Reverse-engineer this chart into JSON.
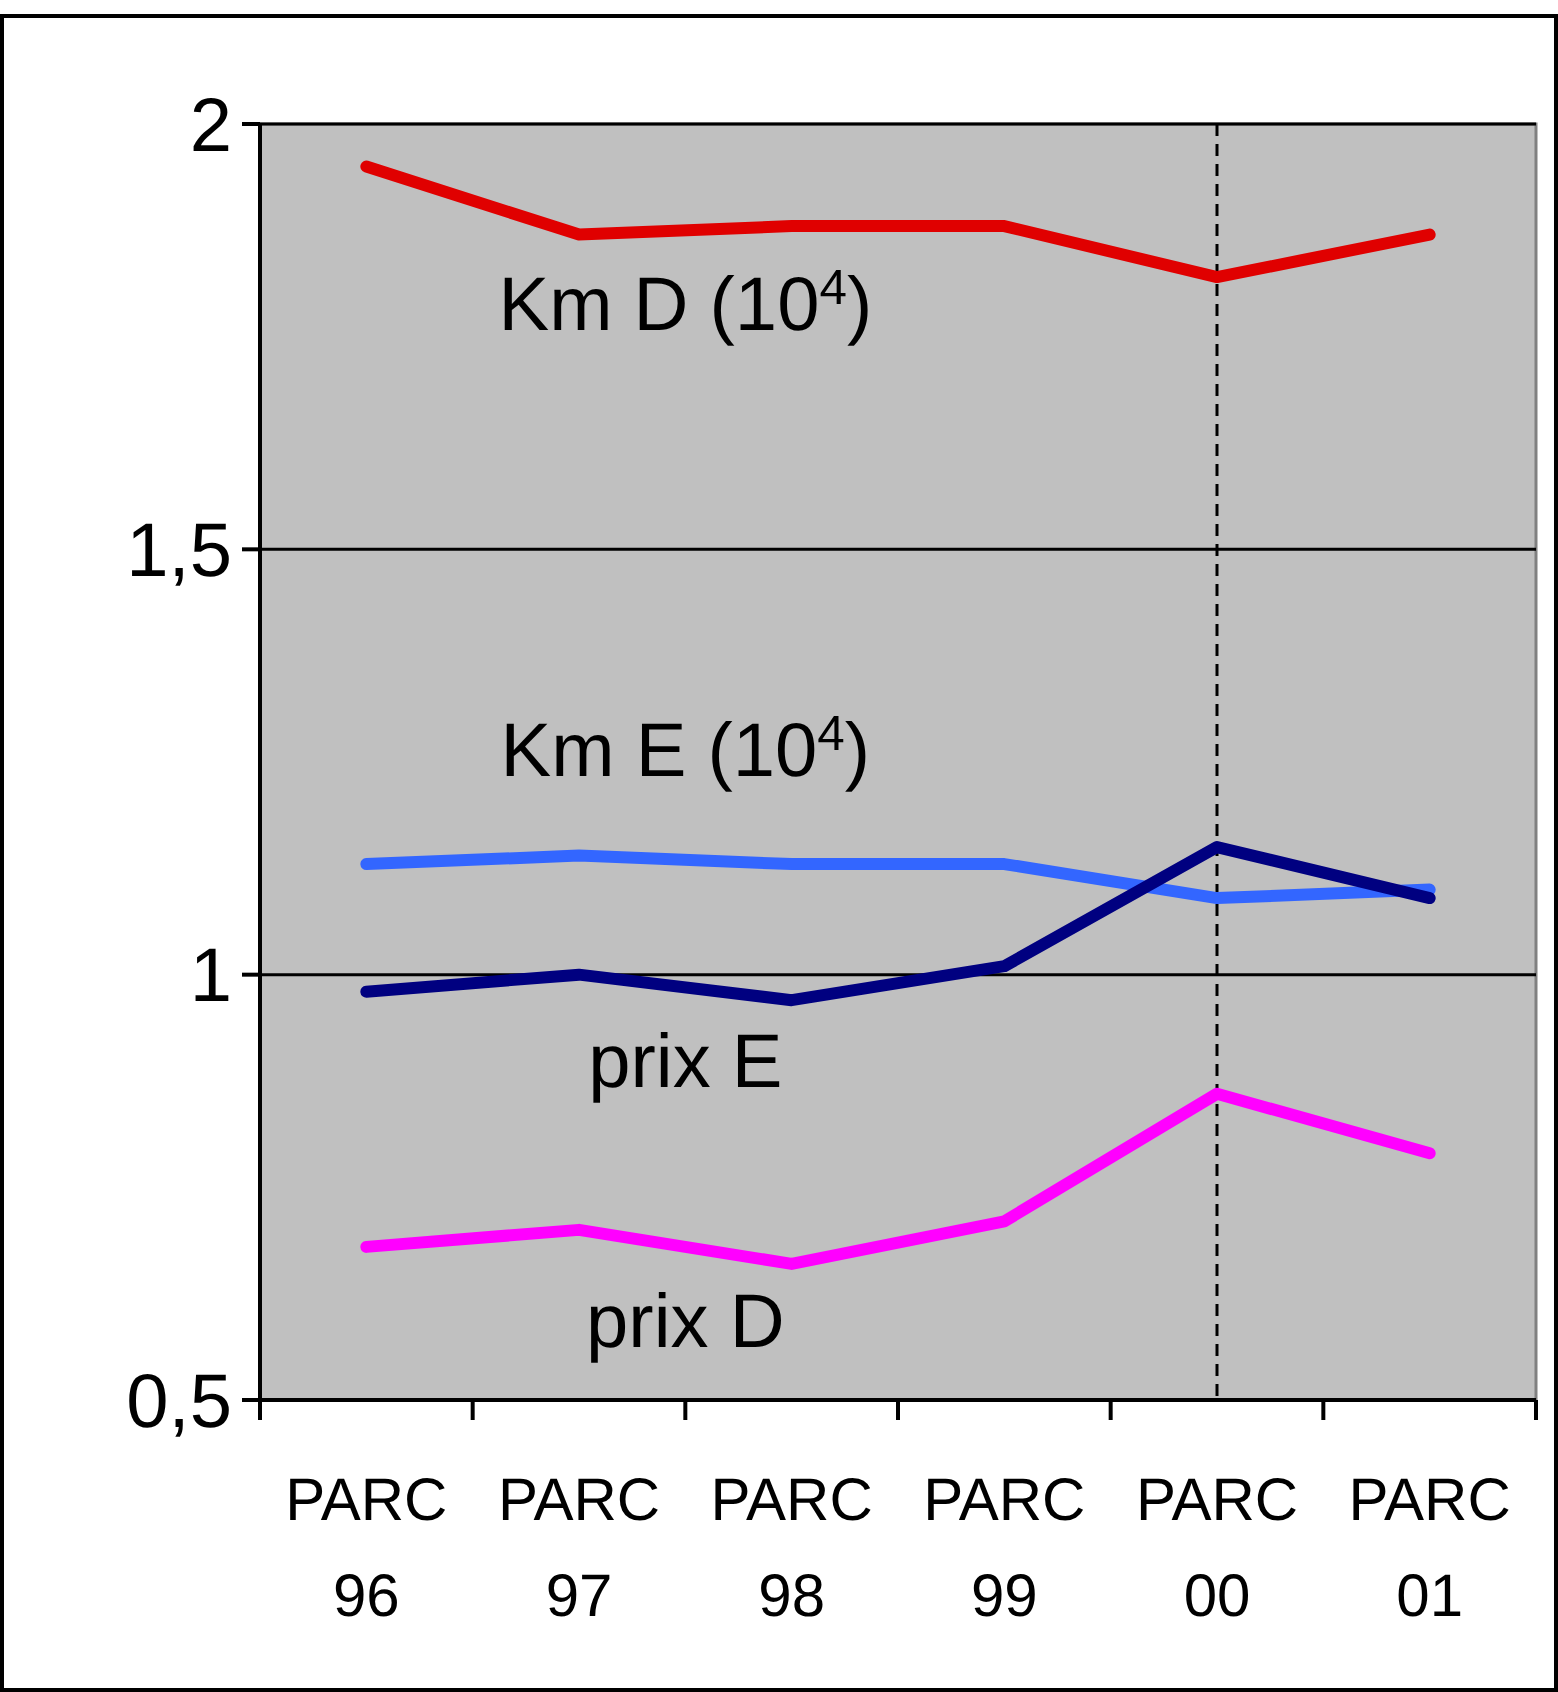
{
  "chart_data": {
    "type": "line",
    "categories": [
      "PARC 96",
      "PARC 97",
      "PARC 98",
      "PARC 99",
      "PARC 00",
      "PARC 01"
    ],
    "series": [
      {
        "name": "Km D (10$^{4}$)",
        "color": "#e00000",
        "values": [
          1.95,
          1.87,
          1.88,
          1.88,
          1.82,
          1.87
        ]
      },
      {
        "name": "Km E (10$^{4}$)",
        "color": "#3366ff",
        "values": [
          1.13,
          1.14,
          1.13,
          1.13,
          1.09,
          1.1
        ]
      },
      {
        "name": "prix E",
        "color": "#000080",
        "values": [
          0.98,
          1.0,
          0.97,
          1.01,
          1.15,
          1.09
        ]
      },
      {
        "name": "prix D",
        "color": "#ff00ff",
        "values": [
          0.68,
          0.7,
          0.66,
          0.71,
          0.86,
          0.79
        ]
      }
    ],
    "ylim": [
      0.5,
      2
    ],
    "yticks": [
      {
        "value": 0.5,
        "label": "0,5"
      },
      1,
      {
        "value": 1.5,
        "label": "1,5"
      },
      2
    ],
    "grid": "y",
    "marker": "none",
    "line_style": "solid",
    "ref_lines": [
      {
        "axis": "x",
        "value": "PARC 00",
        "line_style": "dashed",
        "color": "#000000"
      }
    ]
  }
}
